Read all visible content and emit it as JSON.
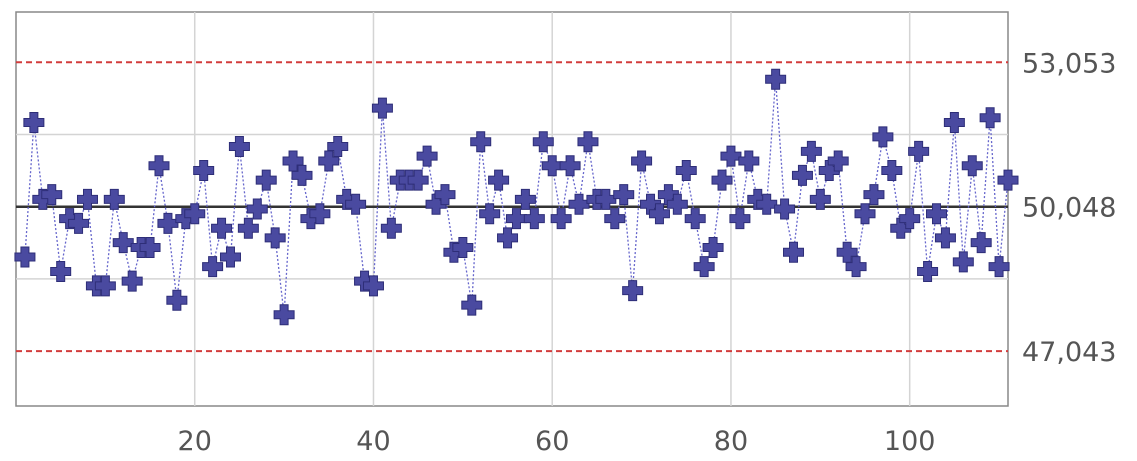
{
  "chart_data": {
    "type": "scatter",
    "title": "",
    "xlabel": "",
    "ylabel": "",
    "xlim": [
      0,
      111
    ],
    "ylim": [
      45900,
      54100
    ],
    "x_ticks": [
      20,
      40,
      60,
      80,
      100
    ],
    "x_tick_labels": [
      "20",
      "40",
      "60",
      "80",
      "100"
    ],
    "grid": true,
    "legend": "none",
    "reference_lines": [
      {
        "role": "upper-control-limit",
        "value": 53053,
        "label": "53,053",
        "style": "dashed",
        "color": "#d23c3c"
      },
      {
        "role": "center-line",
        "value": 50048,
        "label": "50,048",
        "style": "solid",
        "color": "#333333"
      },
      {
        "role": "lower-control-limit",
        "value": 47043,
        "label": "47,043",
        "style": "dashed",
        "color": "#d23c3c"
      }
    ],
    "series": [
      {
        "marker": "plus",
        "color": "#4a4aa0",
        "line_style": "dotted",
        "x": [
          1,
          2,
          3,
          4,
          5,
          6,
          7,
          8,
          9,
          10,
          11,
          12,
          13,
          14,
          15,
          16,
          17,
          18,
          19,
          20,
          21,
          22,
          23,
          24,
          25,
          26,
          27,
          28,
          29,
          30,
          31,
          32,
          33,
          34,
          35,
          36,
          37,
          38,
          39,
          40,
          41,
          42,
          43,
          44,
          45,
          46,
          47,
          48,
          49,
          50,
          51,
          52,
          53,
          54,
          55,
          56,
          57,
          58,
          59,
          60,
          61,
          62,
          63,
          64,
          65,
          66,
          67,
          68,
          69,
          70,
          71,
          72,
          73,
          74,
          75,
          76,
          77,
          78,
          79,
          80,
          81,
          82,
          83,
          84,
          85,
          86,
          87,
          88,
          89,
          90,
          91,
          92,
          93,
          94,
          95,
          96,
          97,
          98,
          99,
          100,
          101,
          102,
          103,
          104,
          105,
          106,
          107,
          108,
          109,
          110,
          111
        ],
        "y": [
          49000,
          51800,
          50200,
          50300,
          48700,
          49800,
          49700,
          50200,
          48400,
          48400,
          50200,
          49300,
          48500,
          49200,
          49200,
          50900,
          49700,
          48100,
          49800,
          49900,
          50800,
          48800,
          49600,
          49000,
          51300,
          49600,
          50000,
          50600,
          49400,
          47800,
          51000,
          50700,
          49800,
          49900,
          51000,
          51300,
          50200,
          50100,
          48500,
          48400,
          52100,
          49600,
          50600,
          50600,
          50600,
          51100,
          50100,
          50300,
          49100,
          49200,
          48000,
          51400,
          49900,
          50600,
          49400,
          49800,
          50200,
          49800,
          51400,
          50900,
          49800,
          50900,
          50100,
          51400,
          50200,
          50200,
          49800,
          50300,
          48300,
          51000,
          50100,
          49900,
          50300,
          50100,
          50800,
          49800,
          48800,
          49200,
          50600,
          51100,
          49800,
          51000,
          50200,
          50100,
          52700,
          50000,
          49100,
          50700,
          51200,
          50200,
          50800,
          51000,
          49100,
          48800,
          49900,
          50300,
          51500,
          50800,
          49600,
          49800,
          51200,
          48700,
          49900,
          49400,
          51800,
          48900,
          50900,
          49300,
          51900,
          48800,
          50600
        ]
      }
    ]
  }
}
